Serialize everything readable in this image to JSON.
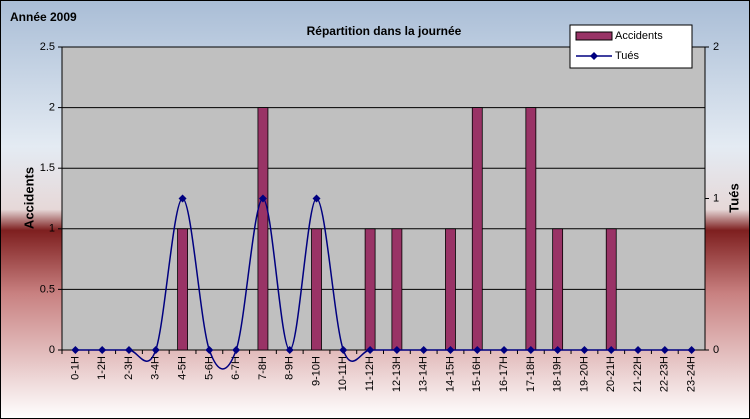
{
  "chart_data": {
    "type": "bar-line",
    "annotation": "Année 2009",
    "title": "Répartition dans la journée",
    "y_label": "Accidents",
    "y2_label": "Tués",
    "categories": [
      "0-1H",
      "1-2H",
      "2-3H",
      "3-4H",
      "4-5H",
      "5-6H",
      "6-7H",
      "7-8H",
      "8-9H",
      "9-10H",
      "10-11H",
      "11-12H",
      "12-13H",
      "13-14H",
      "14-15H",
      "15-16H",
      "16-17H",
      "17-18H",
      "18-19H",
      "19-20H",
      "20-21H",
      "21-22H",
      "22-23H",
      "23-24H"
    ],
    "series": [
      {
        "name": "Accidents",
        "type": "bar",
        "color": "#993366",
        "values": [
          0,
          0,
          0,
          0,
          1,
          0,
          0,
          2,
          0,
          1,
          0,
          1,
          1,
          0,
          1,
          2,
          0,
          2,
          1,
          0,
          1,
          0,
          0,
          0
        ]
      },
      {
        "name": "Tués",
        "type": "line",
        "axis": "y2",
        "color": "#000080",
        "values": [
          0,
          0,
          0,
          0,
          1,
          0,
          0,
          1,
          0,
          1,
          0,
          0,
          0,
          0,
          0,
          0,
          0,
          0,
          0,
          0,
          0,
          0,
          0,
          0
        ]
      }
    ],
    "ylim": [
      0,
      2.5
    ],
    "yticks": [
      0,
      0.5,
      1,
      1.5,
      2,
      2.5
    ],
    "y2lim": [
      0,
      2
    ],
    "y2ticks": [
      0,
      1,
      2
    ],
    "grid": true,
    "legend": "top-right"
  }
}
